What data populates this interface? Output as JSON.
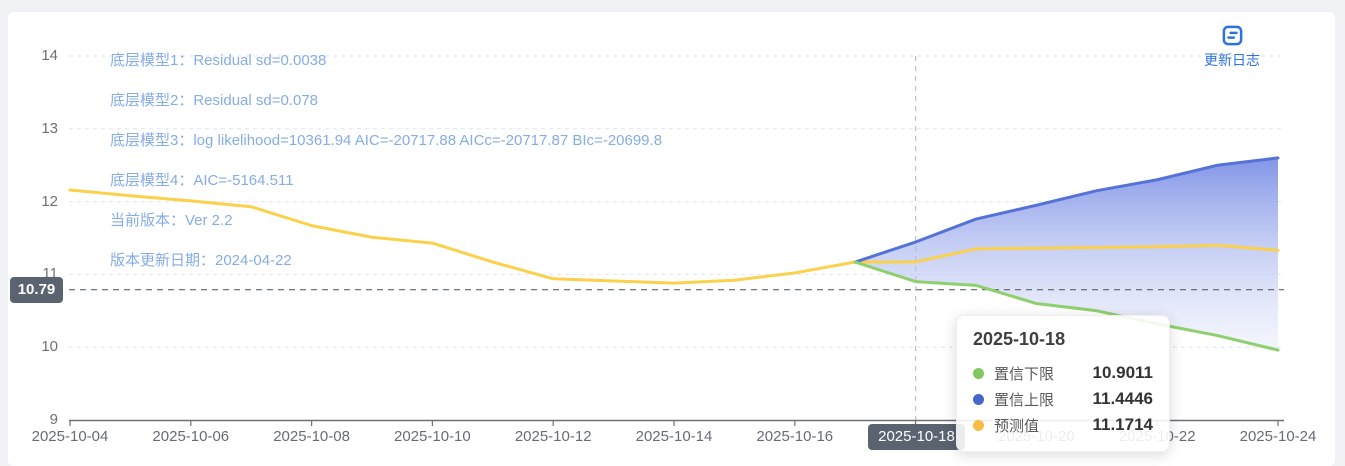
{
  "page": {
    "bg": "#f1f2f6",
    "panel_bg": "#ffffff"
  },
  "update_log": {
    "label": "更新日志",
    "color": "#2e72e0"
  },
  "annotations": [
    "底层模型1：Residual sd=0.0038",
    "底层模型2：Residual sd=0.078",
    "底层模型3：log likelihood=10361.94 AIC=-20717.88 AICc=-20717.87 BIc=-20699.8",
    "底层模型4：AIC=-5164.511",
    "当前版本：Ver 2.2",
    "版本更新日期：2024-04-22"
  ],
  "markline": {
    "label": "10.79",
    "value": 10.79,
    "color": "#5a6370"
  },
  "axis_pointer": {
    "date": "2025-10-18",
    "badge_bg": "#5a6370"
  },
  "tooltip": {
    "title": "2025-10-18",
    "rows": [
      {
        "name": "置信下限",
        "value": "10.9011",
        "color": "#82c860"
      },
      {
        "name": "置信上限",
        "value": "11.4446",
        "color": "#4766cb"
      },
      {
        "name": "预测值",
        "value": "11.1714",
        "color": "#f8bc45"
      }
    ]
  },
  "chart_data": {
    "type": "line",
    "x": [
      "2025-10-04",
      "2025-10-05",
      "2025-10-06",
      "2025-10-07",
      "2025-10-08",
      "2025-10-09",
      "2025-10-10",
      "2025-10-11",
      "2025-10-12",
      "2025-10-13",
      "2025-10-14",
      "2025-10-15",
      "2025-10-16",
      "2025-10-17",
      "2025-10-18",
      "2025-10-19",
      "2025-10-20",
      "2025-10-21",
      "2025-10-22",
      "2025-10-23",
      "2025-10-24"
    ],
    "series": [
      {
        "name": "预测值",
        "color": "#fbd04a",
        "values": [
          12.16,
          12.08,
          12.01,
          11.93,
          11.67,
          11.51,
          11.43,
          11.17,
          10.94,
          10.91,
          10.88,
          10.92,
          11.02,
          11.17,
          11.1714,
          11.35,
          11.36,
          11.37,
          11.38,
          11.4,
          11.33
        ]
      },
      {
        "name": "置信上限",
        "color": "#5472d8",
        "values": [
          null,
          null,
          null,
          null,
          null,
          null,
          null,
          null,
          null,
          null,
          null,
          null,
          null,
          11.17,
          11.4446,
          11.76,
          11.95,
          12.15,
          12.3,
          12.5,
          12.6
        ]
      },
      {
        "name": "置信下限",
        "color": "#8fd06e",
        "values": [
          null,
          null,
          null,
          null,
          null,
          null,
          null,
          null,
          null,
          null,
          null,
          null,
          null,
          11.17,
          10.9011,
          10.85,
          10.6,
          10.5,
          10.32,
          10.16,
          9.96
        ]
      }
    ],
    "band": {
      "upper": "置信上限",
      "lower": "置信下限",
      "gradient_top": "#7c90e6",
      "gradient_bottom": "#ffffff"
    },
    "ylim": [
      9,
      14
    ],
    "y_ticks": [
      9,
      10,
      11,
      12,
      13,
      14
    ],
    "x_label_step": 2,
    "highlight_x": "2025-10-18",
    "markline_y": 10.79,
    "grid": "horizontal dashed",
    "legend_position": "none (tooltip only)"
  }
}
